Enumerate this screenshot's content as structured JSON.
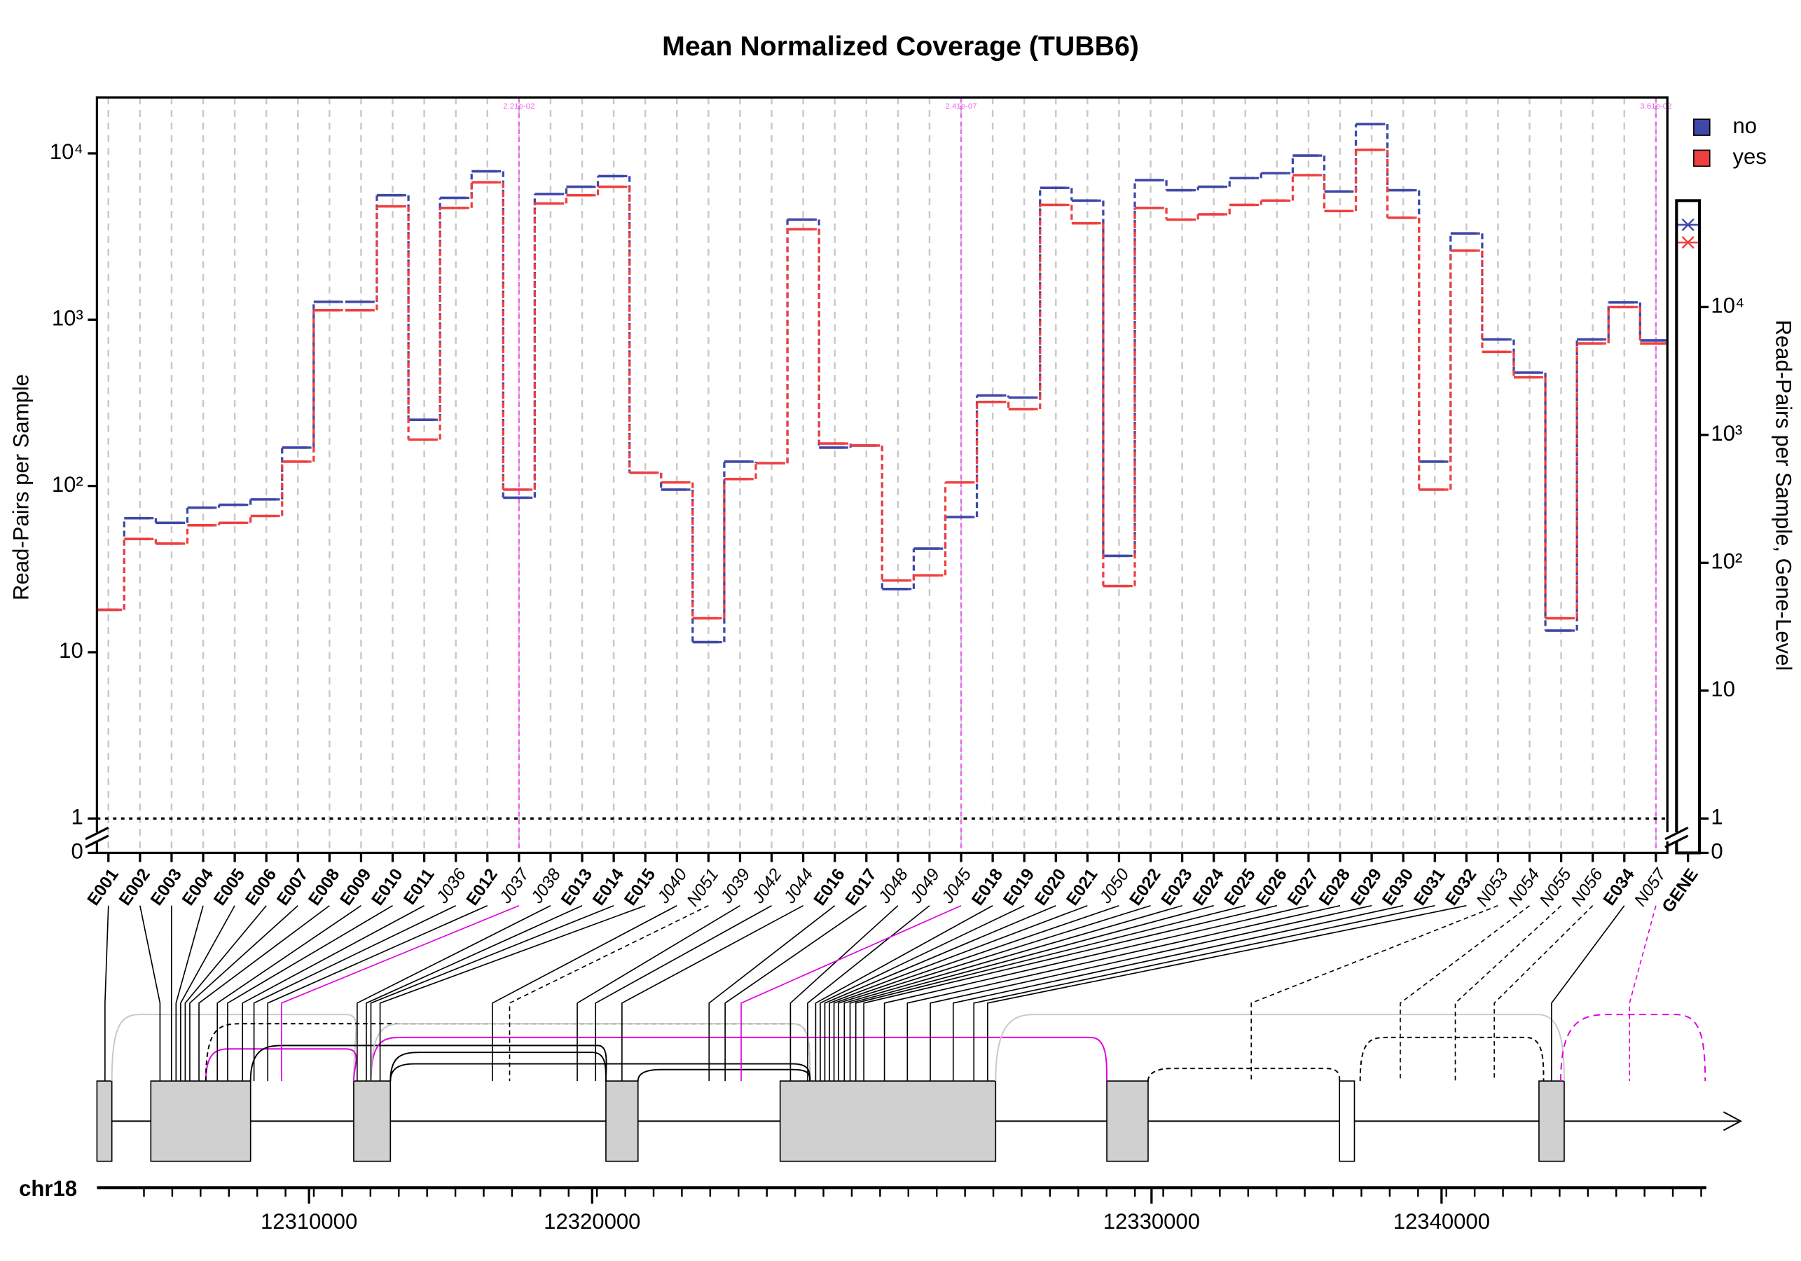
{
  "chart_data": {
    "type": "step",
    "title": "Mean Normalized Coverage (TUBB6)",
    "y_label": "Read-Pairs per Sample",
    "y2_label": "Read-Pairs per Sample, Gene-Level",
    "log_scale": true,
    "legend": "top-right",
    "categories": [
      "E001",
      "E002",
      "E003",
      "E004",
      "E005",
      "E006",
      "E007",
      "E008",
      "E009",
      "E010",
      "E011",
      "J036",
      "E012",
      "J037",
      "J038",
      "E013",
      "E014",
      "E015",
      "J040",
      "N051",
      "J039",
      "J042",
      "J044",
      "E016",
      "E017",
      "J048",
      "J049",
      "J045",
      "E018",
      "E019",
      "E020",
      "E021",
      "J050",
      "E022",
      "E023",
      "E024",
      "E025",
      "E026",
      "E027",
      "E028",
      "E029",
      "E030",
      "E031",
      "E032",
      "N053",
      "N054",
      "N055",
      "N056",
      "E034",
      "N057"
    ],
    "series": [
      {
        "name": "no",
        "color": "#3f48a8",
        "gene_value": 44000,
        "values": [
          18,
          64,
          60,
          74,
          77,
          83,
          170,
          1280,
          1280,
          5600,
          250,
          5400,
          7800,
          85,
          5700,
          6300,
          7300,
          120,
          95,
          11.5,
          140,
          137,
          4000,
          170,
          175,
          24,
          42,
          65,
          350,
          340,
          6200,
          5200,
          38,
          6900,
          6000,
          6300,
          7100,
          7600,
          9700,
          5900,
          15000,
          6000,
          140,
          3300,
          760,
          480,
          13.5,
          760,
          1270,
          750
        ]
      },
      {
        "name": "yes",
        "color": "#ee4040",
        "gene_value": 32000,
        "values": [
          18,
          48,
          45,
          58,
          60,
          66,
          140,
          1140,
          1140,
          4800,
          190,
          4700,
          6700,
          95,
          5000,
          5600,
          6300,
          120,
          105,
          16,
          110,
          137,
          3500,
          180,
          175,
          27,
          29,
          105,
          320,
          290,
          4900,
          3800,
          25,
          4700,
          4000,
          4300,
          4900,
          5200,
          7400,
          4500,
          10500,
          4100,
          95,
          2600,
          640,
          450,
          16,
          720,
          1190,
          720
        ]
      }
    ],
    "gene_label": "GENE",
    "ylim": [
      0,
      21700
    ],
    "yticks": [
      0,
      1,
      10,
      {
        "value": 100,
        "label": "10²"
      },
      {
        "value": 1000,
        "label": "10³"
      },
      {
        "value": 10000,
        "label": "10⁴"
      }
    ],
    "y2lim": [
      0,
      68000
    ],
    "y2ticks": [
      0,
      1,
      10,
      {
        "value": 100,
        "label": "10²"
      },
      {
        "value": 1000,
        "label": "10³"
      },
      {
        "value": 10000,
        "label": "10⁴"
      }
    ],
    "annotations": [
      {
        "category": "J037",
        "text": "2.21e-02"
      },
      {
        "category": "J045",
        "text": "2.41e-07"
      },
      {
        "category": "N057",
        "text": "3.61e-02"
      }
    ],
    "genome_axis": {
      "label": "chr18",
      "ticks": [
        12310000,
        12320000,
        12330000,
        12340000
      ]
    }
  }
}
